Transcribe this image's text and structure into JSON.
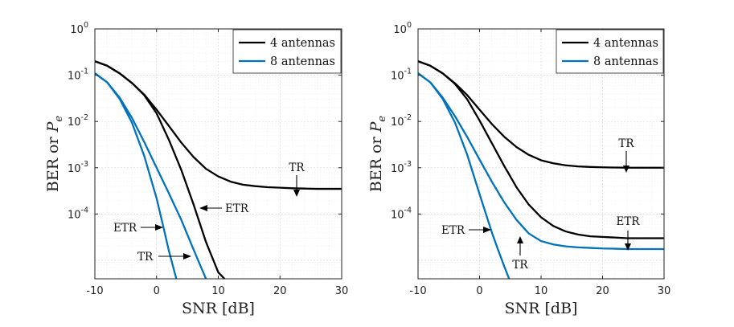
{
  "chart_data": [
    {
      "type": "line",
      "panel": "left",
      "xlabel": "SNR [dB]",
      "ylabel_text": "BER or ",
      "ylabel_symbol": "P",
      "ylabel_subscript": "e",
      "xlim": [
        -10,
        30
      ],
      "ylim_log10": [
        -5.4,
        0
      ],
      "yscale": "log",
      "x_ticks": [
        "-10",
        "0",
        "10",
        "20",
        "30"
      ],
      "x_tick_values": [
        -10,
        0,
        10,
        20,
        30
      ],
      "y_ticks_exp": [
        "0",
        "-1",
        "-2",
        "-3",
        "-4"
      ],
      "y_tick_base": "10",
      "legend": [
        "4 antennas",
        "8 antennas"
      ],
      "legend_position": "top-right",
      "grid": true,
      "colors": {
        "4 antennas": "#000000",
        "8 antennas": "#0072BD"
      },
      "series": [
        {
          "name": "4 antennas TR",
          "legend": "4 antennas",
          "x": [
            -10,
            -8,
            -6,
            -4,
            -2,
            0,
            2,
            4,
            6,
            8,
            10,
            12,
            14,
            16,
            18,
            20,
            22,
            24,
            26,
            28,
            30
          ],
          "y": [
            0.2,
            0.16,
            0.11,
            0.068,
            0.038,
            0.018,
            0.008,
            0.0035,
            0.0017,
            0.00095,
            0.00065,
            0.0005,
            0.00043,
            0.0004,
            0.00038,
            0.00037,
            0.00036,
            0.000355,
            0.00035,
            0.00035,
            0.00035
          ]
        },
        {
          "name": "4 antennas ETR",
          "legend": "4 antennas",
          "x": [
            -10,
            -8,
            -6,
            -4,
            -2,
            0,
            2,
            4,
            6,
            8,
            10,
            11
          ],
          "y": [
            0.2,
            0.16,
            0.11,
            0.068,
            0.037,
            0.015,
            0.004,
            0.0009,
            0.00016,
            2.5e-05,
            5.5e-06,
            4e-06
          ]
        },
        {
          "name": "8 antennas TR",
          "legend": "8 antennas",
          "x": [
            -10,
            -8,
            -6,
            -4,
            -2,
            0,
            2,
            4,
            6,
            8
          ],
          "y": [
            0.11,
            0.07,
            0.033,
            0.012,
            0.0036,
            0.001,
            0.00028,
            7.5e-05,
            1.7e-05,
            4e-06
          ]
        },
        {
          "name": "8 antennas ETR",
          "legend": "8 antennas",
          "x": [
            -10,
            -8,
            -6,
            -4,
            -2,
            0,
            1,
            2,
            3,
            3.2
          ],
          "y": [
            0.11,
            0.07,
            0.031,
            0.0095,
            0.0018,
            0.00022,
            6e-05,
            1.6e-05,
            5e-06,
            4e-06
          ]
        }
      ],
      "annotations": [
        {
          "text": "TR",
          "x_data": 22.7,
          "y_data": 0.000355,
          "direction": "down"
        },
        {
          "text": "ETR",
          "x_data": 7,
          "y_data": 0.00025,
          "direction": "left"
        },
        {
          "text": "ETR",
          "x_data": 0.8,
          "y_data": 8e-05,
          "direction": "right"
        },
        {
          "text": "TR",
          "x_data": 5.8,
          "y_data": 2.5e-05,
          "direction": "right"
        }
      ]
    },
    {
      "type": "line",
      "panel": "right",
      "xlabel": "SNR [dB]",
      "ylabel_text": "BER or ",
      "ylabel_symbol": "P",
      "ylabel_subscript": "e",
      "xlim": [
        -10,
        30
      ],
      "ylim_log10": [
        -5.4,
        0
      ],
      "yscale": "log",
      "x_ticks": [
        "-10",
        "0",
        "10",
        "20",
        "30"
      ],
      "x_tick_values": [
        -10,
        0,
        10,
        20,
        30
      ],
      "y_ticks_exp": [
        "0",
        "-1",
        "-2",
        "-3",
        "-4"
      ],
      "y_tick_base": "10",
      "legend": [
        "4 antennas",
        "8 antennas"
      ],
      "legend_position": "top-right",
      "grid": true,
      "colors": {
        "4 antennas": "#000000",
        "8 antennas": "#0072BD"
      },
      "series": [
        {
          "name": "4 antennas TR",
          "legend": "4 antennas",
          "x": [
            -10,
            -8,
            -6,
            -4,
            -2,
            0,
            2,
            4,
            6,
            8,
            10,
            12,
            14,
            16,
            18,
            20,
            22,
            24,
            26,
            28,
            30
          ],
          "y": [
            0.2,
            0.16,
            0.11,
            0.067,
            0.037,
            0.018,
            0.0088,
            0.0047,
            0.0028,
            0.0019,
            0.00145,
            0.00125,
            0.00113,
            0.00107,
            0.00104,
            0.00102,
            0.00101,
            0.001,
            0.001,
            0.001,
            0.001
          ]
        },
        {
          "name": "4 antennas ETR",
          "legend": "4 antennas",
          "x": [
            -10,
            -8,
            -6,
            -4,
            -2,
            0,
            2,
            4,
            6,
            8,
            10,
            12,
            14,
            16,
            18,
            20,
            22,
            24,
            26,
            28,
            30
          ],
          "y": [
            0.2,
            0.16,
            0.11,
            0.065,
            0.03,
            0.0105,
            0.0034,
            0.0011,
            0.00038,
            0.00016,
            8.5e-05,
            5.5e-05,
            4.2e-05,
            3.6e-05,
            3.3e-05,
            3.2e-05,
            3.1e-05,
            3e-05,
            3e-05,
            3e-05,
            3e-05
          ]
        },
        {
          "name": "8 antennas TR",
          "legend": "8 antennas",
          "x": [
            -10,
            -8,
            -6,
            -4,
            -2,
            0,
            2,
            4,
            6,
            8,
            10,
            12,
            14,
            16,
            18,
            20,
            22,
            24,
            26,
            28,
            30
          ],
          "y": [
            0.11,
            0.07,
            0.033,
            0.013,
            0.0046,
            0.0015,
            0.0005,
            0.00018,
            7.5e-05,
            3.8e-05,
            2.6e-05,
            2.2e-05,
            2e-05,
            1.9e-05,
            1.85e-05,
            1.8e-05,
            1.78e-05,
            1.75e-05,
            1.75e-05,
            1.75e-05,
            1.75e-05
          ]
        },
        {
          "name": "8 antennas ETR",
          "legend": "8 antennas",
          "x": [
            -10,
            -8,
            -6,
            -4,
            -2,
            0,
            2,
            3,
            4,
            4.8
          ],
          "y": [
            0.11,
            0.07,
            0.031,
            0.0095,
            0.0019,
            0.00027,
            4e-05,
            1.7e-05,
            7.5e-06,
            4e-06
          ]
        }
      ],
      "annotations": [
        {
          "text": "TR",
          "x_data": 23.9,
          "y_data": 0.001,
          "direction": "down"
        },
        {
          "text": "ETR",
          "x_data": 24.4,
          "y_data": 3e-05,
          "direction": "down"
        },
        {
          "text": "ETR",
          "x_data": 2.3,
          "y_data": 9e-05,
          "direction": "right"
        },
        {
          "text": "TR",
          "x_data": 6.2,
          "y_data": 8e-05,
          "direction": "up"
        }
      ]
    }
  ]
}
